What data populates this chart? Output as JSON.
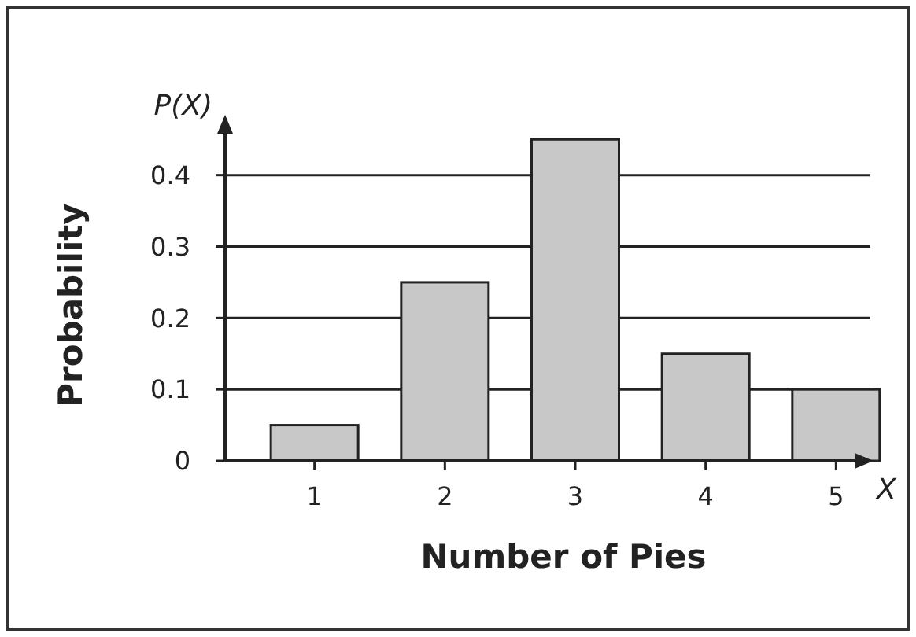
{
  "chart_data": {
    "type": "bar",
    "xlabel": "Number of Pies",
    "ylabel": "Probability",
    "categories": [
      "1",
      "2",
      "3",
      "4",
      "5"
    ],
    "values": [
      0.05,
      0.25,
      0.45,
      0.15,
      0.1
    ],
    "color": "#c8c8c8",
    "ylim": [
      0,
      0.48
    ],
    "yticks": [
      0,
      0.1,
      0.2,
      0.3,
      0.4
    ],
    "grid": "y",
    "annotations": [
      "P(X)",
      "X"
    ]
  }
}
